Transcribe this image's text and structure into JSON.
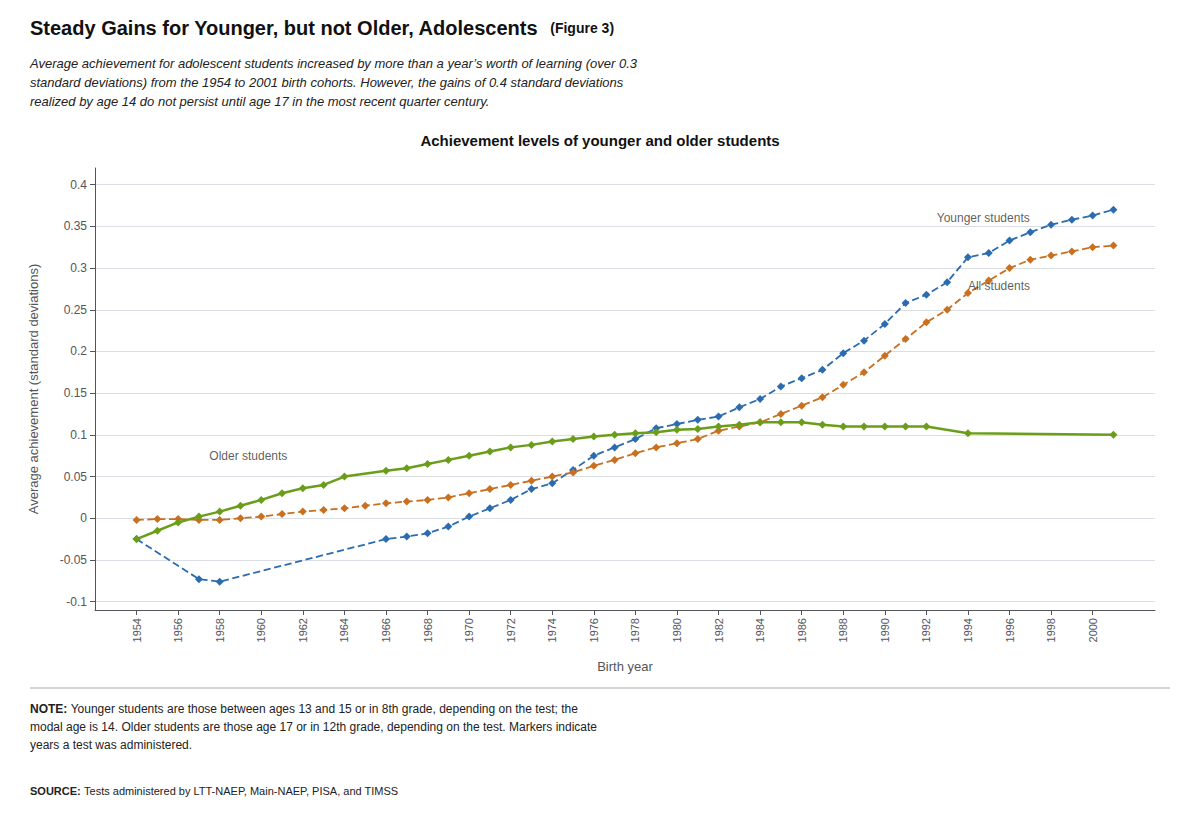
{
  "chart_data": {
    "type": "line",
    "title": "Steady Gains for Younger, but not Older, Adolescents",
    "figure_label": "(Figure 3)",
    "subtitle": "Average achievement for adolescent students increased by more than a year’s worth of learning (over 0.3\nstandard deviations) from the 1954 to 2001 birth cohorts. However, the gains of 0.4 standard deviations\nrealized by age 14 do not persist until age 17 in the most recent quarter century.",
    "chart_title": "Achievement levels of younger and older students",
    "xlabel": "Birth year",
    "ylabel": "Average achievement (standard deviations)",
    "note": {
      "label": "NOTE:",
      "text": "Younger students are those between ages 13 and 15 or in 8th grade, depending on the test; the\nmodal age is 14. Older students are those age 17 or in 12th grade, depending on the test. Markers indicate\nyears a test was administered."
    },
    "source": {
      "label": "SOURCE:",
      "text": "Tests administered by LTT-NAEP, Main-NAEP, PISA, and TIMSS"
    },
    "xlim": [
      1952,
      2003
    ],
    "xticks": [
      1954,
      1956,
      1958,
      1960,
      1962,
      1964,
      1966,
      1968,
      1970,
      1972,
      1974,
      1976,
      1978,
      1980,
      1982,
      1984,
      1986,
      1988,
      1990,
      1992,
      1994,
      1996,
      1998,
      2000
    ],
    "ylim": [
      -0.11,
      0.42
    ],
    "yticks": [
      -0.1,
      -0.05,
      0,
      0.05,
      0.1,
      0.15,
      0.2,
      0.25,
      0.3,
      0.35,
      0.4
    ],
    "grid": true,
    "series": [
      {
        "color": "#2b6cb0",
        "line_style": "dashed",
        "marker": "diamond",
        "x": [
          1954,
          1957,
          1958,
          1966,
          1967,
          1968,
          1969,
          1970,
          1971,
          1972,
          1973,
          1974,
          1975,
          1976,
          1977,
          1978,
          1979,
          1980,
          1981,
          1982,
          1983,
          1984,
          1985,
          1986,
          1987,
          1988,
          1989,
          1990,
          1991,
          1992,
          1993,
          1994,
          1995,
          1996,
          1997,
          1998,
          1999,
          2000,
          2001
        ],
        "values": [
          -0.025,
          -0.073,
          -0.076,
          -0.025,
          -0.022,
          -0.018,
          -0.01,
          0.002,
          0.012,
          0.022,
          0.035,
          0.042,
          0.058,
          0.075,
          0.085,
          0.095,
          0.108,
          0.113,
          0.118,
          0.122,
          0.133,
          0.143,
          0.158,
          0.168,
          0.178,
          0.198,
          0.213,
          0.233,
          0.258,
          0.268,
          0.283,
          0.313,
          0.318,
          0.333,
          0.343,
          0.352,
          0.358,
          0.363,
          0.37
        ]
      },
      {
        "color": "#c87020",
        "line_style": "dashed",
        "marker": "diamond",
        "x": [
          1954,
          1955,
          1956,
          1957,
          1958,
          1959,
          1960,
          1961,
          1962,
          1963,
          1964,
          1965,
          1966,
          1967,
          1968,
          1969,
          1970,
          1971,
          1972,
          1973,
          1974,
          1975,
          1976,
          1977,
          1978,
          1979,
          1980,
          1981,
          1982,
          1983,
          1984,
          1985,
          1986,
          1987,
          1988,
          1989,
          1990,
          1991,
          1992,
          1993,
          1994,
          1995,
          1996,
          1997,
          1998,
          1999,
          2000,
          2001
        ],
        "values": [
          -0.002,
          -0.001,
          -0.001,
          -0.002,
          -0.002,
          0.0,
          0.002,
          0.005,
          0.008,
          0.01,
          0.012,
          0.015,
          0.018,
          0.02,
          0.022,
          0.025,
          0.03,
          0.035,
          0.04,
          0.045,
          0.05,
          0.055,
          0.063,
          0.07,
          0.078,
          0.085,
          0.09,
          0.095,
          0.105,
          0.11,
          0.115,
          0.125,
          0.135,
          0.145,
          0.16,
          0.175,
          0.195,
          0.215,
          0.235,
          0.25,
          0.27,
          0.285,
          0.3,
          0.31,
          0.315,
          0.32,
          0.325,
          0.327
        ]
      },
      {
        "color": "#6a9e1a",
        "line_style": "solid",
        "marker": "diamond",
        "x": [
          1954,
          1955,
          1956,
          1957,
          1958,
          1959,
          1960,
          1961,
          1962,
          1963,
          1964,
          1966,
          1967,
          1968,
          1969,
          1970,
          1971,
          1972,
          1973,
          1974,
          1975,
          1976,
          1977,
          1978,
          1979,
          1980,
          1981,
          1982,
          1983,
          1984,
          1985,
          1986,
          1987,
          1988,
          1989,
          1990,
          1991,
          1992,
          1994,
          2001
        ],
        "values": [
          -0.025,
          -0.015,
          -0.005,
          0.002,
          0.008,
          0.015,
          0.022,
          0.03,
          0.036,
          0.04,
          0.05,
          0.057,
          0.06,
          0.065,
          0.07,
          0.075,
          0.08,
          0.085,
          0.088,
          0.092,
          0.095,
          0.098,
          0.1,
          0.102,
          0.103,
          0.106,
          0.107,
          0.11,
          0.112,
          0.115,
          0.115,
          0.115,
          0.112,
          0.11,
          0.11,
          0.11,
          0.11,
          0.11,
          0.102,
          0.1
        ]
      }
    ],
    "annotations": [
      {
        "text": "Younger students",
        "x": 1992.5,
        "y": 0.36
      },
      {
        "text": "All students",
        "x": 1994.0,
        "y": 0.278
      },
      {
        "text": "Older students",
        "x": 1957.5,
        "y": 0.075
      }
    ]
  }
}
